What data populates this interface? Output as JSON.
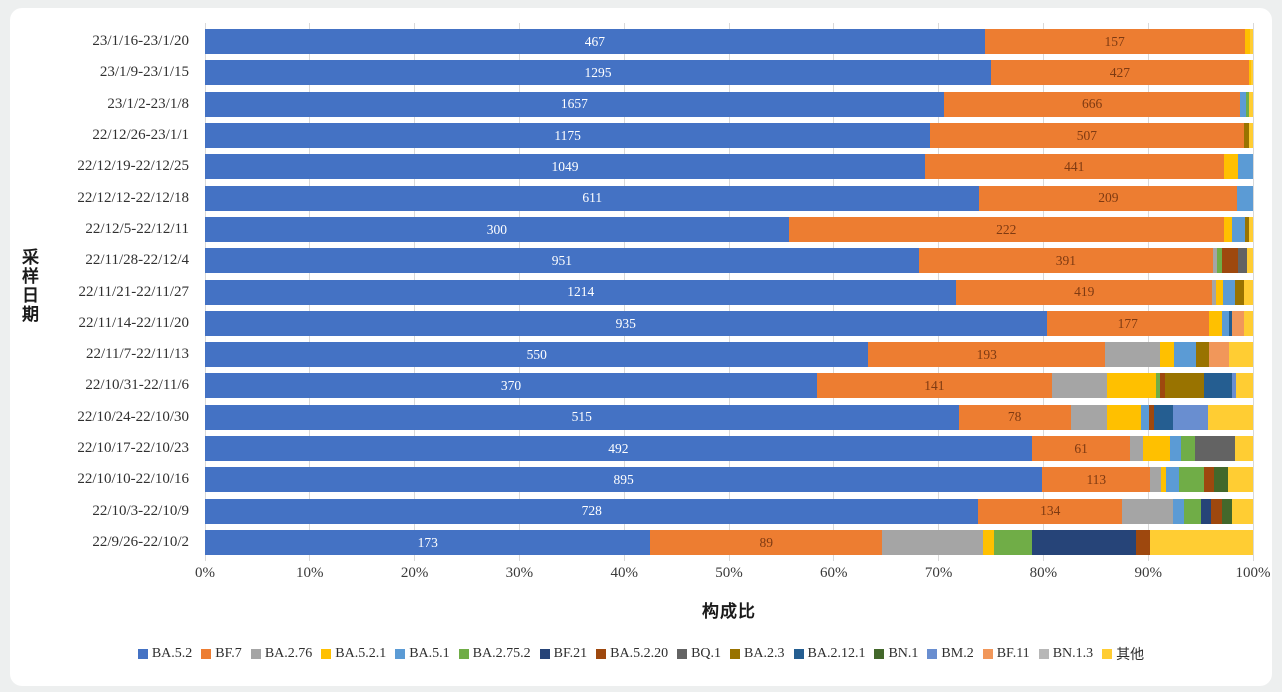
{
  "labels": {
    "x_title": "构成比",
    "y_title": "采样日期"
  },
  "chart_data": {
    "type": "bar",
    "variant": "horizontal-100pct-stacked",
    "title": "",
    "xlabel": "构成比",
    "ylabel": "采样日期",
    "xlim": [
      0,
      100
    ],
    "grid": "vertical-10pct",
    "legend_position": "bottom",
    "x_ticks": [
      "0%",
      "10%",
      "20%",
      "30%",
      "40%",
      "50%",
      "60%",
      "70%",
      "80%",
      "90%",
      "100%"
    ],
    "series_order": [
      "BA.5.2",
      "BF.7",
      "BA.2.76",
      "BA.5.2.1",
      "BA.5.1",
      "BA.2.75.2",
      "BF.21",
      "BA.5.2.20",
      "BQ.1",
      "BA.2.3",
      "BA.2.12.1",
      "BN.1",
      "BM.2",
      "BF.11",
      "BN.1.3",
      "其他"
    ],
    "colors": {
      "BA.5.2": "#4472C4",
      "BF.7": "#ED7D31",
      "BA.2.76": "#A5A5A5",
      "BA.5.2.1": "#FFC000",
      "BA.5.1": "#5B9BD5",
      "BA.2.75.2": "#70AD47",
      "BF.21": "#264478",
      "BA.5.2.20": "#9E480E",
      "BQ.1": "#636363",
      "BA.2.3": "#997300",
      "BA.2.12.1": "#255E91",
      "BN.1": "#43682B",
      "BM.2": "#698ED0",
      "BF.11": "#F1975A",
      "BN.1.3": "#B7B7B7",
      "其他": "#FFCD33"
    },
    "categories": [
      "23/1/16-23/1/20",
      "23/1/9-23/1/15",
      "23/1/2-23/1/8",
      "22/12/26-23/1/1",
      "22/12/19-22/12/25",
      "22/12/12-22/12/18",
      "22/12/5-22/12/11",
      "22/11/28-22/12/4",
      "22/11/21-22/11/27",
      "22/11/14-22/11/20",
      "22/11/7-22/11/13",
      "22/10/31-22/11/6",
      "22/10/24-22/10/30",
      "22/10/17-22/10/23",
      "22/10/10-22/10/16",
      "22/10/3-22/10/9",
      "22/9/26-22/10/2"
    ],
    "rows": [
      {
        "category": "23/1/16-23/1/20",
        "segments": [
          {
            "series": "BA.5.2",
            "pct": 74.4,
            "label": "467"
          },
          {
            "series": "BF.7",
            "pct": 24.8,
            "label": "157"
          },
          {
            "series": "BA.5.2.1",
            "pct": 0.5
          },
          {
            "series": "其他",
            "pct": 0.3
          }
        ]
      },
      {
        "category": "23/1/9-23/1/15",
        "segments": [
          {
            "series": "BA.5.2",
            "pct": 75.0,
            "label": "1295"
          },
          {
            "series": "BF.7",
            "pct": 24.6,
            "label": "427"
          },
          {
            "series": "BA.5.2.1",
            "pct": 0.2
          },
          {
            "series": "其他",
            "pct": 0.2
          }
        ]
      },
      {
        "category": "23/1/2-23/1/8",
        "segments": [
          {
            "series": "BA.5.2",
            "pct": 70.5,
            "label": "1657"
          },
          {
            "series": "BF.7",
            "pct": 28.3,
            "label": "666"
          },
          {
            "series": "BA.5.1",
            "pct": 0.5
          },
          {
            "series": "BA.2.75.2",
            "pct": 0.3
          },
          {
            "series": "其他",
            "pct": 0.4
          }
        ]
      },
      {
        "category": "22/12/26-23/1/1",
        "segments": [
          {
            "series": "BA.5.2",
            "pct": 69.2,
            "label": "1175"
          },
          {
            "series": "BF.7",
            "pct": 29.9,
            "label": "507"
          },
          {
            "series": "BA.2.3",
            "pct": 0.5
          },
          {
            "series": "其他",
            "pct": 0.4
          }
        ]
      },
      {
        "category": "22/12/19-22/12/25",
        "segments": [
          {
            "series": "BA.5.2",
            "pct": 68.7,
            "label": "1049"
          },
          {
            "series": "BF.7",
            "pct": 28.5,
            "label": "441"
          },
          {
            "series": "BA.5.2.1",
            "pct": 1.4
          },
          {
            "series": "BA.5.1",
            "pct": 1.4
          }
        ]
      },
      {
        "category": "22/12/12-22/12/18",
        "segments": [
          {
            "series": "BA.5.2",
            "pct": 73.9,
            "label": "611"
          },
          {
            "series": "BF.7",
            "pct": 24.6,
            "label": "209"
          },
          {
            "series": "BA.5.1",
            "pct": 1.5
          }
        ]
      },
      {
        "category": "22/12/5-22/12/11",
        "segments": [
          {
            "series": "BA.5.2",
            "pct": 55.7,
            "label": "300"
          },
          {
            "series": "BF.7",
            "pct": 41.5,
            "label": "222"
          },
          {
            "series": "BA.5.2.1",
            "pct": 0.8
          },
          {
            "series": "BA.5.1",
            "pct": 1.2
          },
          {
            "series": "BA.2.3",
            "pct": 0.4
          },
          {
            "series": "其他",
            "pct": 0.4
          }
        ]
      },
      {
        "category": "22/11/28-22/12/4",
        "segments": [
          {
            "series": "BA.5.2",
            "pct": 68.1,
            "label": "951"
          },
          {
            "series": "BF.7",
            "pct": 28.1,
            "label": "391"
          },
          {
            "series": "BA.2.76",
            "pct": 0.4
          },
          {
            "series": "BA.2.75.2",
            "pct": 0.4
          },
          {
            "series": "BA.5.2.20",
            "pct": 1.6
          },
          {
            "series": "BQ.1",
            "pct": 0.8
          },
          {
            "series": "其他",
            "pct": 0.6
          }
        ]
      },
      {
        "category": "22/11/21-22/11/27",
        "segments": [
          {
            "series": "BA.5.2",
            "pct": 71.7,
            "label": "1214"
          },
          {
            "series": "BF.7",
            "pct": 24.4,
            "label": "419"
          },
          {
            "series": "BA.2.76",
            "pct": 0.4
          },
          {
            "series": "BA.5.2.1",
            "pct": 0.6
          },
          {
            "series": "BA.5.1",
            "pct": 1.2
          },
          {
            "series": "BA.2.3",
            "pct": 0.8
          },
          {
            "series": "其他",
            "pct": 0.9
          }
        ]
      },
      {
        "category": "22/11/14-22/11/20",
        "segments": [
          {
            "series": "BA.5.2",
            "pct": 80.3,
            "label": "935"
          },
          {
            "series": "BF.7",
            "pct": 15.5,
            "label": "177"
          },
          {
            "series": "BA.5.2.1",
            "pct": 1.2
          },
          {
            "series": "BA.5.1",
            "pct": 0.7
          },
          {
            "series": "BA.2.12.1",
            "pct": 0.3
          },
          {
            "series": "BF.11",
            "pct": 1.1
          },
          {
            "series": "其他",
            "pct": 0.9
          }
        ]
      },
      {
        "category": "22/11/7-22/11/13",
        "segments": [
          {
            "series": "BA.5.2",
            "pct": 63.3,
            "label": "550"
          },
          {
            "series": "BF.7",
            "pct": 22.6,
            "label": "193"
          },
          {
            "series": "BA.2.76",
            "pct": 5.2
          },
          {
            "series": "BA.5.2.1",
            "pct": 1.4
          },
          {
            "series": "BA.5.1",
            "pct": 2.1
          },
          {
            "series": "BA.2.3",
            "pct": 1.2
          },
          {
            "series": "BF.11",
            "pct": 1.9
          },
          {
            "series": "其他",
            "pct": 2.3
          }
        ]
      },
      {
        "category": "22/10/31-22/11/6",
        "segments": [
          {
            "series": "BA.5.2",
            "pct": 58.4,
            "label": "370"
          },
          {
            "series": "BF.7",
            "pct": 22.4,
            "label": "141"
          },
          {
            "series": "BA.2.76",
            "pct": 5.3
          },
          {
            "series": "BA.5.2.1",
            "pct": 4.6
          },
          {
            "series": "BA.2.75.2",
            "pct": 0.4
          },
          {
            "series": "BA.5.2.20",
            "pct": 0.5
          },
          {
            "series": "BA.2.3",
            "pct": 3.7
          },
          {
            "series": "BA.2.12.1",
            "pct": 2.7
          },
          {
            "series": "BM.2",
            "pct": 0.4
          },
          {
            "series": "其他",
            "pct": 1.6
          }
        ]
      },
      {
        "category": "22/10/24-22/10/30",
        "segments": [
          {
            "series": "BA.5.2",
            "pct": 71.9,
            "label": "515"
          },
          {
            "series": "BF.7",
            "pct": 10.7,
            "label": "78"
          },
          {
            "series": "BA.2.76",
            "pct": 3.5
          },
          {
            "series": "BA.5.2.1",
            "pct": 3.2
          },
          {
            "series": "BA.5.1",
            "pct": 0.8
          },
          {
            "series": "BA.5.2.20",
            "pct": 0.5
          },
          {
            "series": "BA.2.12.1",
            "pct": 1.8
          },
          {
            "series": "BM.2",
            "pct": 3.3
          },
          {
            "series": "其他",
            "pct": 4.3
          }
        ]
      },
      {
        "category": "22/10/17-22/10/23",
        "segments": [
          {
            "series": "BA.5.2",
            "pct": 78.9,
            "label": "492"
          },
          {
            "series": "BF.7",
            "pct": 9.4,
            "label": "61"
          },
          {
            "series": "BA.2.76",
            "pct": 1.2
          },
          {
            "series": "BA.5.2.1",
            "pct": 2.6
          },
          {
            "series": "BA.5.1",
            "pct": 1.0
          },
          {
            "series": "BA.2.75.2",
            "pct": 1.4
          },
          {
            "series": "BQ.1",
            "pct": 3.8
          },
          {
            "series": "其他",
            "pct": 1.7
          }
        ]
      },
      {
        "category": "22/10/10-22/10/16",
        "segments": [
          {
            "series": "BA.5.2",
            "pct": 79.9,
            "label": "895"
          },
          {
            "series": "BF.7",
            "pct": 10.3,
            "label": "113"
          },
          {
            "series": "BA.2.76",
            "pct": 1.0
          },
          {
            "series": "BA.5.2.1",
            "pct": 0.5
          },
          {
            "series": "BA.5.1",
            "pct": 1.2
          },
          {
            "series": "BA.2.75.2",
            "pct": 2.4
          },
          {
            "series": "BA.5.2.20",
            "pct": 1.0
          },
          {
            "series": "BN.1",
            "pct": 1.3
          },
          {
            "series": "其他",
            "pct": 2.4
          }
        ]
      },
      {
        "category": "22/10/3-22/10/9",
        "segments": [
          {
            "series": "BA.5.2",
            "pct": 73.8,
            "label": "728"
          },
          {
            "series": "BF.7",
            "pct": 13.7,
            "label": "134"
          },
          {
            "series": "BA.2.76",
            "pct": 4.9
          },
          {
            "series": "BA.5.1",
            "pct": 1.0
          },
          {
            "series": "BA.2.75.2",
            "pct": 1.6
          },
          {
            "series": "BF.21",
            "pct": 1.0
          },
          {
            "series": "BA.5.2.20",
            "pct": 1.0
          },
          {
            "series": "BN.1",
            "pct": 1.0
          },
          {
            "series": "其他",
            "pct": 2.0
          }
        ]
      },
      {
        "category": "22/9/26-22/10/2",
        "segments": [
          {
            "series": "BA.5.2",
            "pct": 42.5,
            "label": "173"
          },
          {
            "series": "BF.7",
            "pct": 22.1,
            "label": "89"
          },
          {
            "series": "BA.2.76",
            "pct": 9.6
          },
          {
            "series": "BA.5.2.1",
            "pct": 1.1
          },
          {
            "series": "BA.2.75.2",
            "pct": 3.6
          },
          {
            "series": "BF.21",
            "pct": 9.9
          },
          {
            "series": "BA.5.2.20",
            "pct": 1.4
          },
          {
            "series": "其他",
            "pct": 9.8
          }
        ]
      }
    ]
  }
}
